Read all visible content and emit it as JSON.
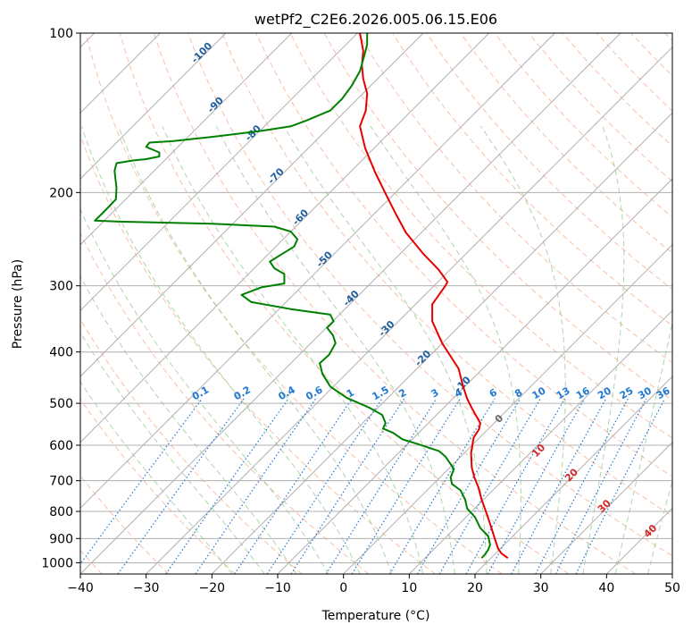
{
  "chart_data": {
    "type": "line",
    "title": "wetPf2_C2E6.2026.005.06.15.E06",
    "xlabel": "Temperature (°C)",
    "ylabel": "Pressure (hPa)",
    "xlim": [
      -40,
      50
    ],
    "ylim": [
      1050,
      100
    ],
    "y_scale": "log",
    "grid": true,
    "x_ticks": [
      "−40",
      "−30",
      "−20",
      "−10",
      "0",
      "10",
      "20",
      "30",
      "40",
      "50"
    ],
    "y_ticks": [
      "100",
      "200",
      "300",
      "400",
      "500",
      "600",
      "700",
      "800",
      "900",
      "1000"
    ],
    "x_tick_values": [
      -40,
      -30,
      -20,
      -10,
      0,
      10,
      20,
      30,
      40,
      50
    ],
    "y_tick_values": [
      100,
      200,
      300,
      400,
      500,
      600,
      700,
      800,
      900,
      1000
    ],
    "series": [
      {
        "role": "temperature",
        "color": "#e60000",
        "points": [
          [
            25.0,
            980
          ],
          [
            24.0,
            960
          ],
          [
            23.5,
            940
          ],
          [
            23.0,
            900
          ],
          [
            22.5,
            860
          ],
          [
            21.8,
            810
          ],
          [
            21.0,
            760
          ],
          [
            20.5,
            720
          ],
          [
            19.9,
            690
          ],
          [
            19.5,
            660
          ],
          [
            19.4,
            620
          ],
          [
            19.8,
            580
          ],
          [
            20.6,
            560
          ],
          [
            20.8,
            545
          ],
          [
            19.5,
            510
          ],
          [
            18.8,
            490
          ],
          [
            18.2,
            465
          ],
          [
            17.5,
            430
          ],
          [
            15.0,
            385
          ],
          [
            13.5,
            350
          ],
          [
            13.5,
            325
          ],
          [
            15.5,
            300
          ],
          [
            15.8,
            295
          ],
          [
            14.5,
            280
          ],
          [
            12.0,
            260
          ],
          [
            9.5,
            238
          ],
          [
            8.0,
            220
          ],
          [
            6.5,
            202
          ],
          [
            4.8,
            183
          ],
          [
            3.3,
            165
          ],
          [
            2.5,
            150
          ],
          [
            3.4,
            140
          ],
          [
            3.6,
            130
          ],
          [
            3.0,
            122
          ],
          [
            2.8,
            115
          ],
          [
            3.0,
            108
          ],
          [
            2.5,
            100
          ]
        ]
      },
      {
        "role": "dewpoint",
        "color": "#008000",
        "points": [
          [
            21.0,
            980
          ],
          [
            21.5,
            965
          ],
          [
            22.0,
            945
          ],
          [
            22.3,
            925
          ],
          [
            22.0,
            890
          ],
          [
            20.8,
            860
          ],
          [
            20.0,
            820
          ],
          [
            18.8,
            790
          ],
          [
            18.5,
            760
          ],
          [
            17.8,
            730
          ],
          [
            16.5,
            710
          ],
          [
            16.3,
            690
          ],
          [
            16.8,
            665
          ],
          [
            15.5,
            630
          ],
          [
            14.5,
            615
          ],
          [
            11.0,
            595
          ],
          [
            9.0,
            585
          ],
          [
            7.5,
            568
          ],
          [
            6.0,
            558
          ],
          [
            6.4,
            545
          ],
          [
            5.9,
            526
          ],
          [
            4.0,
            510
          ],
          [
            0.5,
            488
          ],
          [
            -2.0,
            465
          ],
          [
            -3.2,
            440
          ],
          [
            -3.6,
            420
          ],
          [
            -2.2,
            405
          ],
          [
            -1.2,
            385
          ],
          [
            -1.6,
            372
          ],
          [
            -2.5,
            360
          ],
          [
            -1.5,
            350
          ],
          [
            -2.0,
            340
          ],
          [
            -8.0,
            332
          ],
          [
            -14.0,
            322
          ],
          [
            -15.5,
            312
          ],
          [
            -12.5,
            302
          ],
          [
            -9.0,
            297
          ],
          [
            -9.0,
            285
          ],
          [
            -10.5,
            278
          ],
          [
            -11.2,
            270
          ],
          [
            -9.5,
            262
          ],
          [
            -7.5,
            253
          ],
          [
            -7.0,
            245
          ],
          [
            -8.0,
            237
          ],
          [
            -10.5,
            232
          ],
          [
            -20.0,
            229
          ],
          [
            -34.0,
            227
          ],
          [
            -37.8,
            226
          ],
          [
            -36.5,
            218
          ],
          [
            -34.6,
            206
          ],
          [
            -34.5,
            196
          ],
          [
            -34.8,
            182
          ],
          [
            -34.5,
            176
          ],
          [
            -32.0,
            174
          ],
          [
            -30.0,
            173
          ],
          [
            -28.0,
            171
          ],
          [
            -28.0,
            168
          ],
          [
            -30.0,
            164
          ],
          [
            -29.5,
            161
          ],
          [
            -26.0,
            160
          ],
          [
            -20.0,
            157
          ],
          [
            -12.5,
            153
          ],
          [
            -8.0,
            150
          ],
          [
            -5.5,
            146
          ],
          [
            -2.0,
            140
          ],
          [
            -0.2,
            133
          ],
          [
            1.2,
            126
          ],
          [
            2.5,
            118
          ],
          [
            3.2,
            110
          ],
          [
            3.6,
            105
          ],
          [
            3.6,
            100
          ]
        ]
      }
    ],
    "dry_adiabats": [
      -100,
      -90,
      -80,
      -70,
      -60,
      -50,
      -40,
      -30,
      -20,
      -10,
      0,
      10,
      20,
      30,
      40,
      50,
      60,
      70,
      80,
      90,
      100,
      110,
      120,
      130,
      140,
      150,
      160,
      170,
      180,
      190,
      200,
      210,
      220,
      230,
      240,
      250
    ],
    "moist_adiabats": [
      -20,
      -15,
      -10,
      -5,
      0,
      5,
      10,
      15,
      20,
      25,
      30,
      35,
      40,
      45
    ],
    "mixing_ratio_lines": [
      "0.1",
      "0.2",
      "0.4",
      "0.6",
      "1",
      "1.5",
      "2",
      "3",
      "4",
      "6",
      "8",
      "10",
      "13",
      "16",
      "20",
      "25",
      "30",
      "36"
    ],
    "isotherm_labels": [
      "-100",
      "-90",
      "-80",
      "-70",
      "-60",
      "-50",
      "-40",
      "-30",
      "-20",
      "-10"
    ],
    "wetbulb_labels": [
      "0",
      "10",
      "20",
      "30",
      "40"
    ],
    "colors": {
      "dry_adiabat": "#f4a582",
      "moist_adiabat": "#88c488",
      "mixing_ratio": "#1f78d4",
      "isotherm_label": "#1f5f9f",
      "wetbulb_label": "#d62728",
      "grid": "#b0b0b0"
    }
  }
}
